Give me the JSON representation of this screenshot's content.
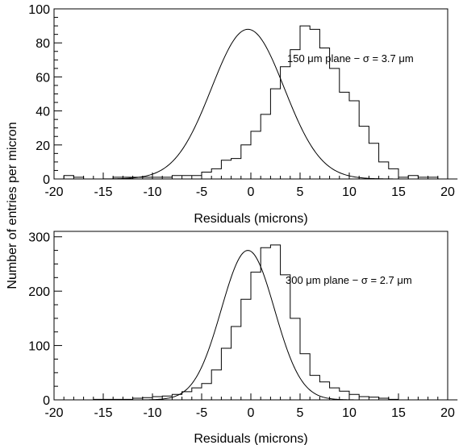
{
  "chart_data": [
    {
      "type": "histogram",
      "xlim": [
        -20,
        20
      ],
      "ylim": [
        0,
        100
      ],
      "xticks": [
        -20,
        -15,
        -10,
        -5,
        0,
        5,
        10,
        15,
        20
      ],
      "yticks": [
        0,
        20,
        40,
        60,
        80,
        100
      ],
      "xlabel": "Residuals (microns)",
      "annotation": "150 μm plane − σ = 3.7 μm",
      "bin_edges_start": -19,
      "bin_width": 1,
      "counts": [
        2,
        1,
        0,
        0,
        0,
        1,
        1,
        1,
        1,
        1,
        1,
        2,
        2,
        2,
        4,
        6,
        11,
        12,
        20,
        28,
        38,
        53,
        66,
        76,
        90,
        88,
        77,
        65,
        51,
        46,
        31,
        21,
        10,
        6,
        1,
        2,
        1,
        1,
        0,
        0
      ],
      "fit": {
        "type": "gaussian",
        "amplitude": 88,
        "mean": -0.3,
        "sigma": 3.7
      }
    },
    {
      "type": "histogram",
      "xlim": [
        -20,
        20
      ],
      "ylim": [
        0,
        310
      ],
      "xticks": [
        -20,
        -15,
        -10,
        -5,
        0,
        5,
        10,
        15,
        20
      ],
      "yticks": [
        0,
        100,
        200,
        300
      ],
      "xlabel": "Residuals (microns)",
      "annotation": "300 μm plane − σ = 2.7 μm",
      "bin_edges_start": -19,
      "bin_width": 1,
      "counts": [
        0,
        0,
        0,
        1,
        1,
        1,
        1,
        3,
        4,
        6,
        7,
        10,
        15,
        22,
        30,
        55,
        95,
        135,
        185,
        235,
        280,
        285,
        230,
        150,
        85,
        45,
        33,
        22,
        16,
        10,
        6,
        5,
        3,
        1,
        0,
        0,
        0,
        0,
        0,
        0
      ],
      "fit": {
        "type": "gaussian",
        "amplitude": 275,
        "mean": -0.3,
        "sigma": 2.7
      }
    }
  ],
  "shared_ylabel": "Number of entries per micron"
}
